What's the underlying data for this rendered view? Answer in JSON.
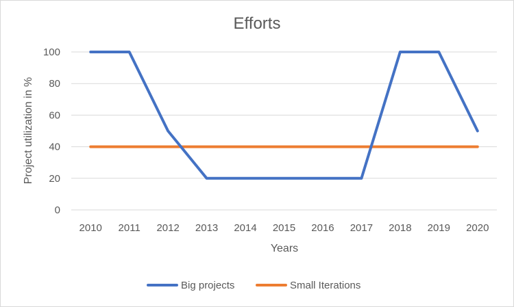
{
  "chart_data": {
    "type": "line",
    "title": "Efforts",
    "xlabel": "Years",
    "ylabel": "Project utilization in %",
    "categories": [
      "2010",
      "2011",
      "2012",
      "2013",
      "2014",
      "2015",
      "2016",
      "2017",
      "2018",
      "2019",
      "2020"
    ],
    "yticks": [
      "0",
      "20",
      "40",
      "60",
      "80",
      "100"
    ],
    "ylim": [
      0,
      100
    ],
    "grid": true,
    "legend_position": "bottom",
    "series": [
      {
        "name": "Big projects",
        "color": "#4472c4",
        "values": [
          100,
          100,
          50,
          20,
          20,
          20,
          20,
          20,
          100,
          100,
          50
        ]
      },
      {
        "name": "Small Iterations",
        "color": "#ed7d31",
        "values": [
          40,
          40,
          40,
          40,
          40,
          40,
          40,
          40,
          40,
          40,
          40
        ]
      }
    ]
  }
}
